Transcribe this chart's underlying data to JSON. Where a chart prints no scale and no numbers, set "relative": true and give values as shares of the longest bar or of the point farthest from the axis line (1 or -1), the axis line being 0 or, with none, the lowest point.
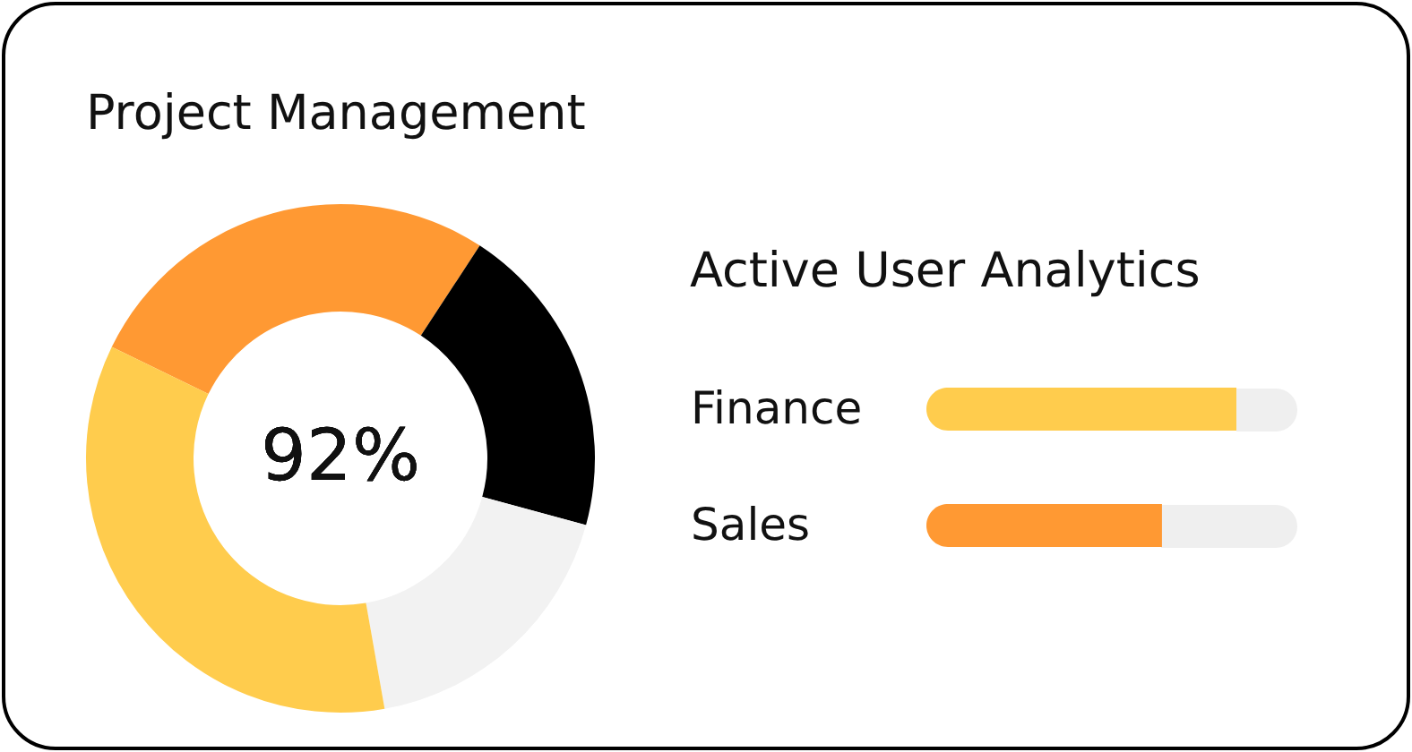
{
  "chart_data": [
    {
      "type": "donut",
      "title": "Project Management",
      "categories": [
        null,
        null,
        null,
        null
      ],
      "values": [
        27,
        20,
        18,
        35
      ],
      "colors": [
        "#ff9933",
        "#000000",
        "#f2f2f2",
        "#ffcc4d"
      ],
      "annotations": [
        "92%"
      ]
    },
    {
      "type": "bar",
      "title": "Active User Analytics",
      "orientation": "horizontal",
      "relative": true,
      "categories": [
        "Finance",
        "Sales"
      ],
      "values": [
        1,
        0.76
      ],
      "colors": [
        "#ffcc4d",
        "#ff9933"
      ]
    }
  ]
}
